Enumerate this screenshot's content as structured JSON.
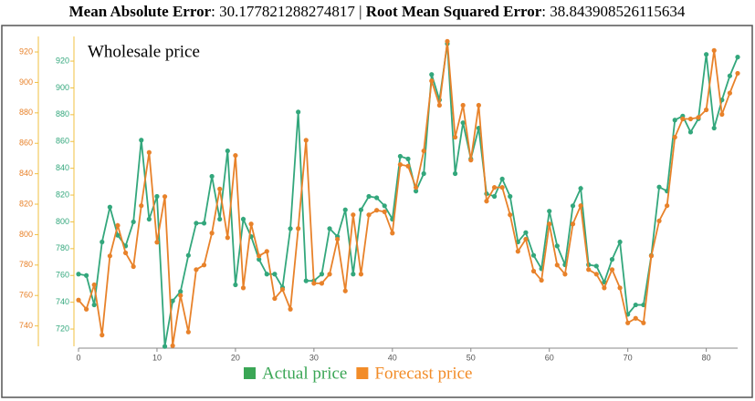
{
  "header": {
    "parts": [
      {
        "text": "Mean Absolute Error",
        "bold": true
      },
      {
        "text": ": 30.177821288274817 | ",
        "bold": false
      },
      {
        "text": "Root Mean Squared Error",
        "bold": true
      },
      {
        "text": ": 38.843908526115634",
        "bold": false
      }
    ]
  },
  "chart_data": {
    "type": "line",
    "title": "Wholesale price",
    "x": [
      0,
      1,
      2,
      3,
      4,
      5,
      6,
      7,
      8,
      9,
      10,
      11,
      12,
      13,
      14,
      15,
      16,
      17,
      18,
      19,
      20,
      21,
      22,
      23,
      24,
      25,
      26,
      27,
      28,
      29,
      30,
      31,
      32,
      33,
      34,
      35,
      36,
      37,
      38,
      39,
      40,
      41,
      42,
      43,
      44,
      45,
      46,
      47,
      48,
      49,
      50,
      51,
      52,
      53,
      54,
      55,
      56,
      57,
      58,
      59,
      60,
      61,
      62,
      63,
      64,
      65,
      66,
      67,
      68,
      69,
      70,
      71,
      72,
      73,
      74,
      75,
      76,
      77,
      78,
      79,
      80,
      81,
      82,
      83,
      84
    ],
    "xlim": [
      0,
      84
    ],
    "xticks": [
      0,
      10,
      20,
      30,
      40,
      50,
      60,
      70,
      80
    ],
    "ylim": [
      726.6,
      930.2
    ],
    "yticks": [
      740,
      760,
      780,
      800,
      820,
      840,
      860,
      880,
      900,
      920
    ],
    "y2lim": [
      707.1,
      938.4
    ],
    "y2ticks": [
      720,
      740,
      760,
      780,
      800,
      820,
      840,
      860,
      880,
      900,
      920
    ],
    "series": [
      {
        "name": "Actual price",
        "color": "#33a77c",
        "legend_color": "#3aa655",
        "axis": "y2",
        "values": [
          761,
          760,
          738,
          785,
          811,
          790,
          782,
          800,
          861,
          802,
          819,
          707,
          741,
          748,
          775,
          799,
          799,
          834,
          802,
          853,
          753,
          802,
          789,
          772,
          761,
          761,
          751,
          795,
          882,
          756,
          756,
          761,
          795,
          789,
          809,
          761,
          809,
          819,
          818,
          812,
          802,
          849,
          847,
          823,
          836,
          910,
          891,
          933,
          836,
          874,
          847,
          870,
          821,
          819,
          832,
          819,
          785,
          792,
          775,
          765,
          808,
          782,
          768,
          812,
          825,
          768,
          767,
          755,
          772,
          785,
          731,
          738,
          738,
          775,
          826,
          823,
          876,
          879,
          867,
          877,
          925,
          870,
          891,
          909,
          923
        ]
      },
      {
        "name": "Forecast price",
        "color": "#e8822a",
        "legend_color": "#f28c28",
        "values": [
          757,
          751,
          767,
          734,
          786,
          806,
          788,
          779,
          819,
          854,
          795,
          825,
          727,
          760,
          736,
          777,
          780,
          801,
          830,
          798,
          852,
          765,
          807,
          786,
          789,
          758,
          764,
          751,
          804,
          862,
          768,
          768,
          774,
          797,
          763,
          813,
          774,
          813,
          816,
          815,
          801,
          846,
          845,
          831,
          855,
          901,
          885,
          927,
          864,
          885,
          849,
          885,
          822,
          831,
          831,
          813,
          789,
          797,
          776,
          770,
          807,
          780,
          774,
          807,
          819,
          777,
          774,
          765,
          777,
          765,
          742,
          745,
          742,
          786,
          809,
          819,
          864,
          876,
          876,
          877,
          882,
          921,
          879,
          893,
          906
        ]
      }
    ]
  }
}
